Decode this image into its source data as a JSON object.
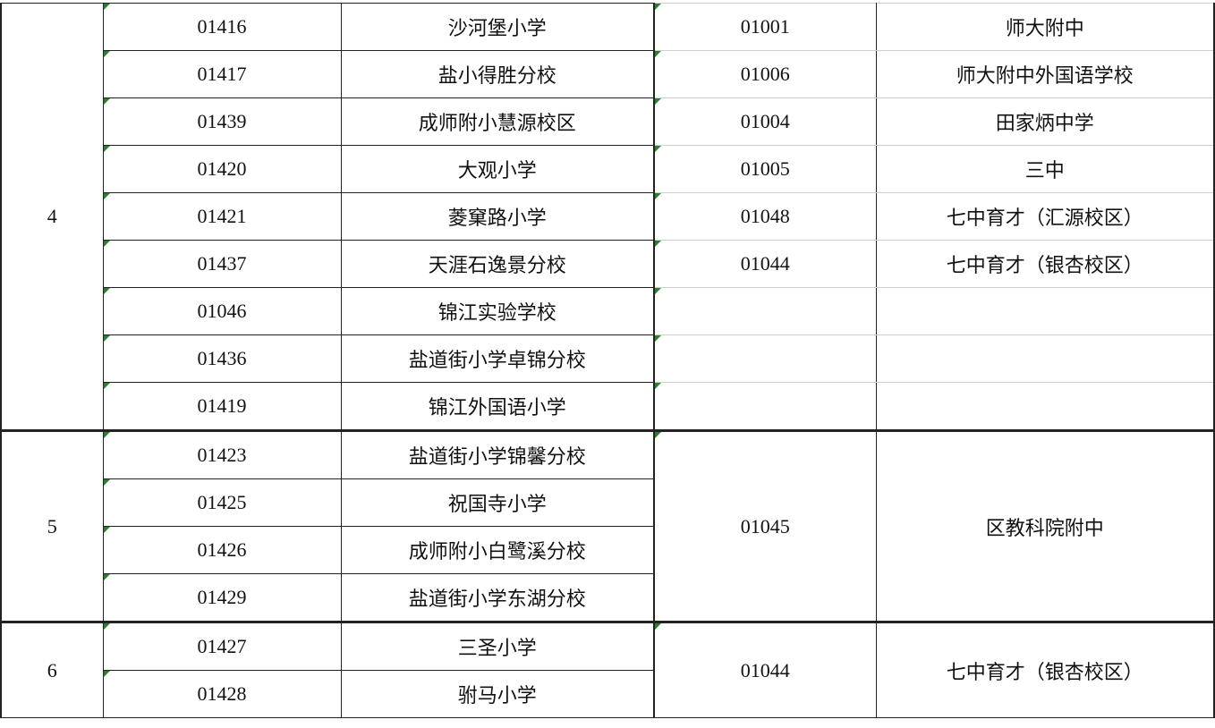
{
  "groups": [
    {
      "group": "4",
      "rows": [
        {
          "code": "01416",
          "school": "沙河堡小学",
          "mid_code": "01001",
          "mid_school": "师大附中"
        },
        {
          "code": "01417",
          "school": "盐小得胜分校",
          "mid_code": "01006",
          "mid_school": "师大附中外国语学校"
        },
        {
          "code": "01439",
          "school": "成师附小慧源校区",
          "mid_code": "01004",
          "mid_school": "田家炳中学"
        },
        {
          "code": "01420",
          "school": "大观小学",
          "mid_code": "01005",
          "mid_school": "三中"
        },
        {
          "code": "01421",
          "school": "菱窠路小学",
          "mid_code": "01048",
          "mid_school": "七中育才（汇源校区）"
        },
        {
          "code": "01437",
          "school": "天涯石逸景分校",
          "mid_code": "01044",
          "mid_school": "七中育才（银杏校区）"
        },
        {
          "code": "01046",
          "school": "锦江实验学校",
          "mid_code": "",
          "mid_school": ""
        },
        {
          "code": "01436",
          "school": "盐道街小学卓锦分校",
          "mid_code": "",
          "mid_school": ""
        },
        {
          "code": "01419",
          "school": "锦江外国语小学",
          "mid_code": "",
          "mid_school": ""
        }
      ]
    },
    {
      "group": "5",
      "mid_code": "01045",
      "mid_school": "区教科院附中",
      "rows": [
        {
          "code": "01423",
          "school": "盐道街小学锦馨分校"
        },
        {
          "code": "01425",
          "school": "祝国寺小学"
        },
        {
          "code": "01426",
          "school": "成师附小白鹭溪分校"
        },
        {
          "code": "01429",
          "school": "盐道街小学东湖分校"
        }
      ]
    },
    {
      "group": "6",
      "mid_code": "01044",
      "mid_school": "七中育才（银杏校区）",
      "rows": [
        {
          "code": "01427",
          "school": "三圣小学"
        },
        {
          "code": "01428",
          "school": "驸马小学"
        }
      ]
    }
  ],
  "marker_color": "#2e7d32"
}
